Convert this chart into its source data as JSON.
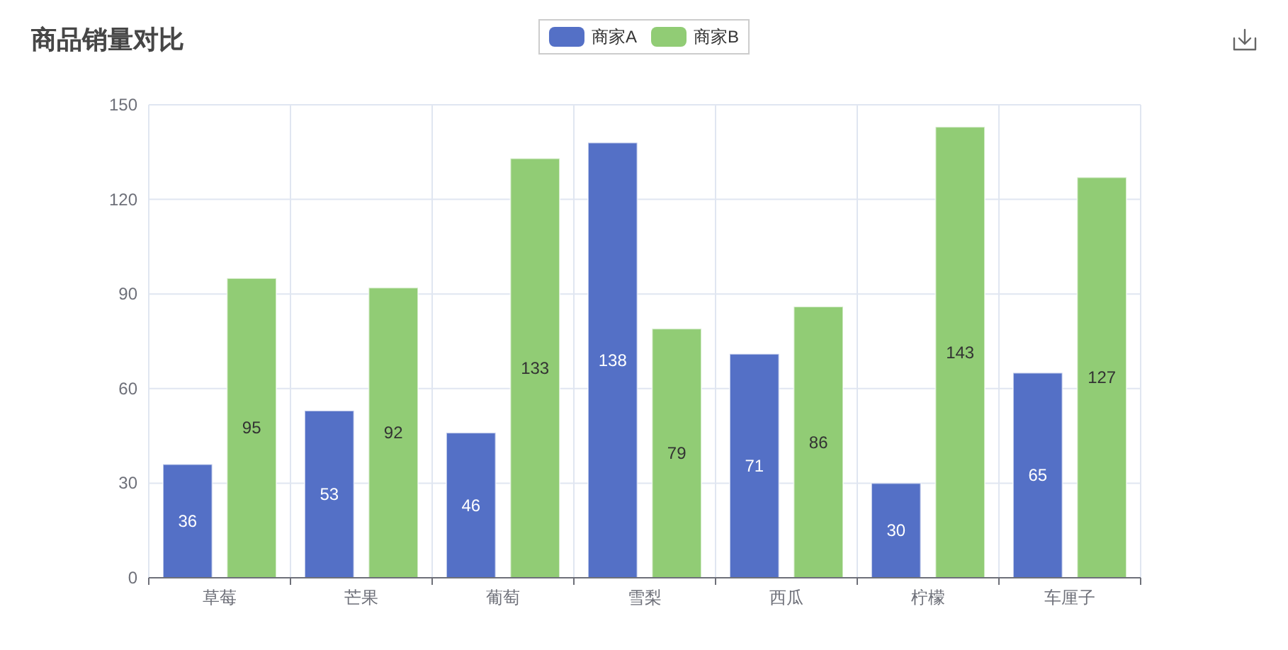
{
  "chart_data": {
    "type": "bar",
    "title": "商品销量对比",
    "categories": [
      "草莓",
      "芒果",
      "葡萄",
      "雪梨",
      "西瓜",
      "柠檬",
      "车厘子"
    ],
    "series": [
      {
        "name": "商家A",
        "color": "#5470c6",
        "values": [
          36,
          53,
          46,
          138,
          71,
          30,
          65
        ]
      },
      {
        "name": "商家B",
        "color": "#91cc75",
        "values": [
          95,
          92,
          133,
          79,
          86,
          143,
          127
        ]
      }
    ],
    "ylim": [
      0,
      150
    ],
    "yticks": [
      0,
      30,
      60,
      90,
      120,
      150
    ],
    "grid": true,
    "legend": "top",
    "data_labels": true
  }
}
